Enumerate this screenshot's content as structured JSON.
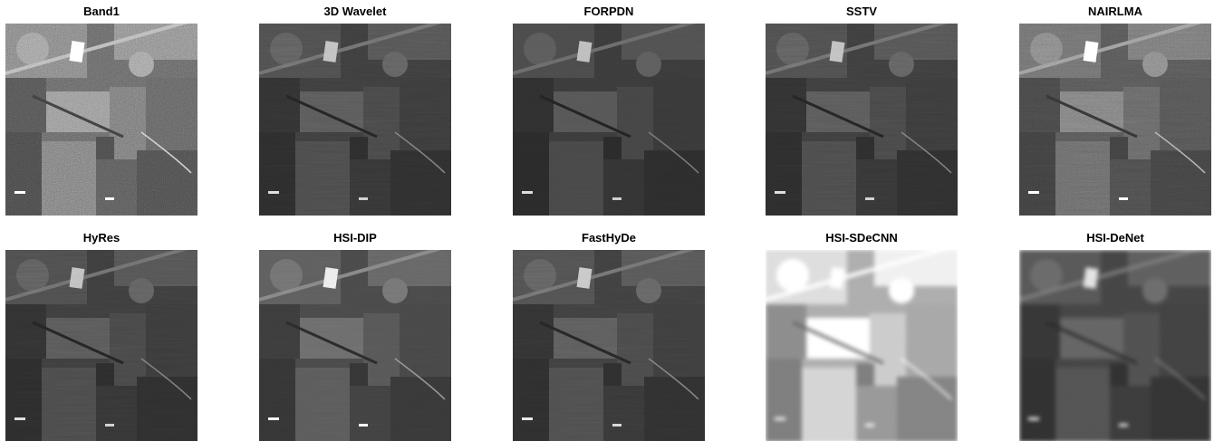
{
  "panels": [
    {
      "title": "Band1"
    },
    {
      "title": "3D Wavelet"
    },
    {
      "title": "FORPDN"
    },
    {
      "title": "SSTV"
    },
    {
      "title": "NAIRLMA"
    },
    {
      "title": "HyRes"
    },
    {
      "title": "HSI-DIP"
    },
    {
      "title": "FastHyDe"
    },
    {
      "title": "HSI-SDeCNN"
    },
    {
      "title": "HSI-DeNet"
    }
  ]
}
